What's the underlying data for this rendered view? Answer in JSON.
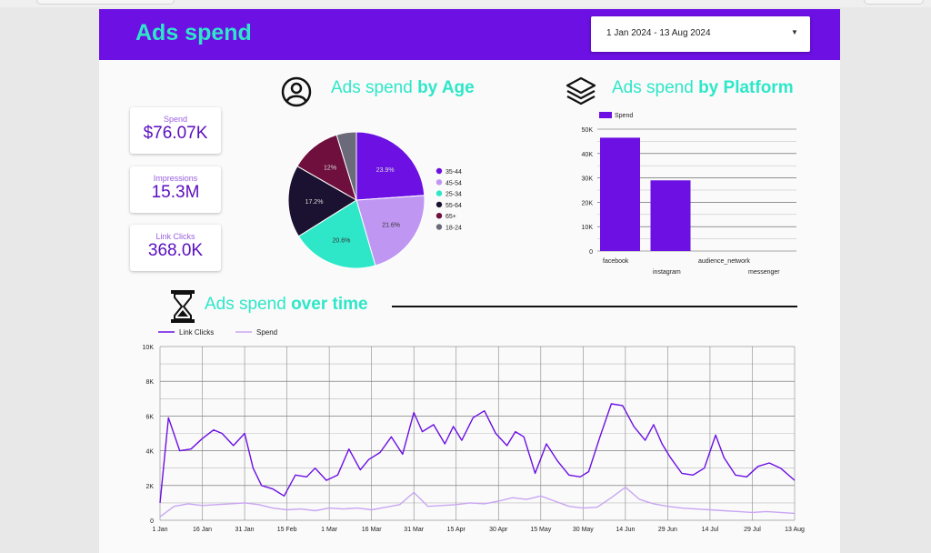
{
  "header": {
    "title": "Ads spend",
    "date_range": "1 Jan 2024 - 13 Aug 2024"
  },
  "kpis": [
    {
      "label": "Spend",
      "value": "$76.07K"
    },
    {
      "label": "Impressions",
      "value": "15.3M"
    },
    {
      "label": "Link Clicks",
      "value": "368.0K"
    }
  ],
  "sections": {
    "age": {
      "prefix": "Ads spend ",
      "bold": "by Age"
    },
    "platform": {
      "prefix": "Ads spend ",
      "bold": "by Platform"
    },
    "time": {
      "prefix": "Ads spend ",
      "bold": "over time"
    }
  },
  "icons": {
    "age": "user-circle-icon",
    "platform": "layers-icon",
    "time": "hourglass-icon",
    "date": "dropdown-caret-icon"
  },
  "chart_data": [
    {
      "type": "pie",
      "title": "Ads spend by Age",
      "categories": [
        "35-44",
        "45-54",
        "25-34",
        "55-64",
        "65+",
        "18-24"
      ],
      "values": [
        23.9,
        21.6,
        20.6,
        17.2,
        12.0,
        4.7
      ],
      "labels": [
        "23.9%",
        "21.6%",
        "20.6%",
        "17.2%",
        "12%",
        ""
      ],
      "colors": [
        "#6c10e3",
        "#bf97f2",
        "#2ee7c9",
        "#1a1230",
        "#6e0f3e",
        "#6a6a7a"
      ],
      "legend": "right"
    },
    {
      "type": "bar",
      "title": "Ads spend by Platform",
      "categories": [
        "facebook",
        "instagram",
        "audience_network",
        "messenger"
      ],
      "series": [
        {
          "name": "Spend",
          "values": [
            46500,
            29000,
            0,
            0
          ]
        }
      ],
      "yticks": [
        "0",
        "10K",
        "20K",
        "30K",
        "40K",
        "50K"
      ],
      "ylim": [
        0,
        50000
      ],
      "color": "#6c10e3",
      "legend": "top-left",
      "grid": true
    },
    {
      "type": "line",
      "title": "Ads spend over time",
      "xticks": [
        "1 Jan",
        "16 Jan",
        "31 Jan",
        "15 Feb",
        "1 Mar",
        "16 Mar",
        "31 Mar",
        "15 Apr",
        "30 Apr",
        "15 May",
        "30 May",
        "14 Jun",
        "29 Jun",
        "14 Jul",
        "29 Jul",
        "13 Aug"
      ],
      "yticks": [
        "0",
        "2K",
        "4K",
        "6K",
        "8K",
        "10K"
      ],
      "ylim": [
        0,
        10000
      ],
      "legend": "top-left",
      "grid": true,
      "series": [
        {
          "name": "Link Clicks",
          "color": "#6c10e3",
          "x": [
            0,
            3,
            7,
            11,
            15,
            19,
            22,
            26,
            30,
            33,
            36,
            40,
            44,
            48,
            52,
            55,
            59,
            63,
            67,
            71,
            74,
            78,
            82,
            86,
            90,
            93,
            97,
            101,
            104,
            107,
            111,
            115,
            119,
            123,
            126,
            129,
            133,
            137,
            141,
            145,
            149,
            152,
            156,
            160,
            164,
            168,
            172,
            175,
            178,
            181,
            185,
            189,
            193,
            197,
            200,
            204,
            208,
            212,
            216,
            220,
            225
          ],
          "y": [
            1000,
            5900,
            4000,
            4100,
            4700,
            5200,
            5000,
            4300,
            5000,
            3000,
            2000,
            1800,
            1400,
            2600,
            2500,
            3000,
            2300,
            2600,
            4100,
            2900,
            3500,
            3900,
            4800,
            3800,
            6200,
            5100,
            5500,
            4400,
            5400,
            4600,
            5900,
            6300,
            5000,
            4300,
            5100,
            4800,
            2700,
            4400,
            3400,
            2600,
            2500,
            2800,
            4800,
            6700,
            6600,
            5400,
            4600,
            5500,
            4400,
            3600,
            2700,
            2600,
            3000,
            4900,
            3600,
            2600,
            2500,
            3100,
            3300,
            3000,
            2300
          ]
        },
        {
          "name": "Spend",
          "color": "#c9a6f2",
          "x": [
            0,
            5,
            10,
            15,
            20,
            25,
            30,
            35,
            40,
            45,
            50,
            55,
            60,
            65,
            70,
            75,
            80,
            85,
            90,
            95,
            100,
            105,
            110,
            115,
            120,
            125,
            130,
            135,
            140,
            145,
            150,
            155,
            160,
            165,
            170,
            175,
            180,
            185,
            190,
            195,
            200,
            205,
            210,
            215,
            220,
            225
          ],
          "y": [
            200,
            800,
            950,
            850,
            900,
            950,
            1000,
            900,
            700,
            600,
            650,
            550,
            700,
            650,
            700,
            600,
            750,
            900,
            1600,
            800,
            850,
            900,
            1000,
            950,
            1100,
            1300,
            1200,
            1400,
            1100,
            800,
            700,
            750,
            1300,
            1900,
            1200,
            950,
            800,
            700,
            650,
            600,
            550,
            500,
            450,
            500,
            450,
            400
          ]
        }
      ]
    }
  ]
}
